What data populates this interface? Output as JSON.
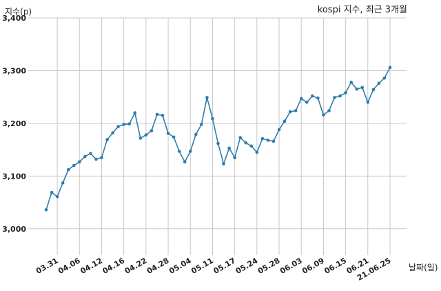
{
  "chart_data": {
    "type": "line",
    "title": "kospi 지수, 최근 3개월",
    "xlabel": "날짜(일)",
    "ylabel": "지수(p)",
    "ylim": [
      2950,
      3400
    ],
    "y_ticks": [
      3000,
      3100,
      3200,
      3300,
      3400
    ],
    "y_tick_labels": [
      "3,000",
      "3,100",
      "3,200",
      "3,300",
      "3,400"
    ],
    "x_tick_labels": [
      "03.31",
      "04.06",
      "04.12",
      "04.16",
      "04.22",
      "04.28",
      "05.04",
      "05.11",
      "05.17",
      "05.24",
      "05.28",
      "06.03",
      "06.09",
      "06.15",
      "06.21",
      "21.06.25"
    ],
    "x_tick_positions": [
      2,
      6,
      10,
      14,
      18,
      22,
      26,
      30,
      34,
      38,
      42,
      46,
      50,
      54,
      58,
      62
    ],
    "grid": true,
    "line_color": "#2e7cac",
    "series": [
      {
        "values": [
          3036,
          3069,
          3061,
          3087,
          3112,
          3120,
          3127,
          3137,
          3143,
          3132,
          3135,
          3169,
          3182,
          3194,
          3198,
          3199,
          3220,
          3172,
          3178,
          3186,
          3217,
          3215,
          3181,
          3174,
          3147,
          3127,
          3147,
          3179,
          3198,
          3249,
          3209,
          3162,
          3123,
          3153,
          3135,
          3173,
          3163,
          3157,
          3145,
          3171,
          3168,
          3166,
          3188,
          3204,
          3222,
          3224,
          3247,
          3240,
          3252,
          3248,
          3216,
          3224,
          3249,
          3252,
          3258,
          3278,
          3265,
          3268,
          3240,
          3264,
          3276,
          3286,
          3306
        ]
      }
    ]
  }
}
